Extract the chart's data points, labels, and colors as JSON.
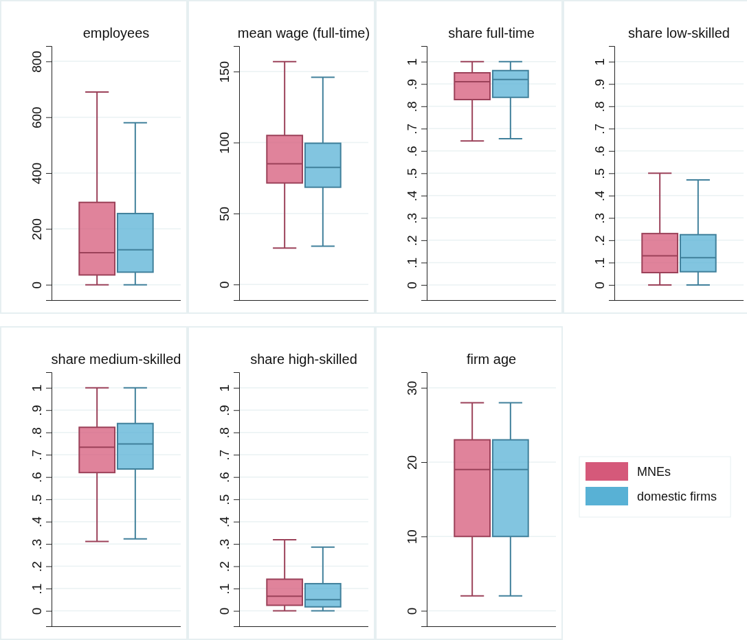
{
  "chart_data": [
    {
      "type": "box",
      "title": "employees",
      "categories": [
        null
      ],
      "ylim": [
        -55,
        855
      ],
      "yticks": [
        0,
        200,
        400,
        600,
        800
      ],
      "grid": "y",
      "series": [
        {
          "color": "#d5597a",
          "boxes": [
            {
              "low": 0,
              "q1": 35,
              "median": 115,
              "q3": 295,
              "high": 690
            }
          ]
        },
        {
          "color": "#58b1d5",
          "boxes": [
            {
              "low": 0,
              "q1": 45,
              "median": 125,
              "q3": 255,
              "high": 580
            }
          ]
        }
      ]
    },
    {
      "type": "box",
      "title": "mean wage (full-time)",
      "categories": [
        null
      ],
      "ylim": [
        -11,
        168
      ],
      "yticks": [
        0,
        50,
        100,
        150
      ],
      "grid": "y",
      "series": [
        {
          "color": "#d5597a",
          "boxes": [
            {
              "low": 25.6,
              "q1": 71.5,
              "median": 85,
              "q3": 105,
              "high": 157
            }
          ]
        },
        {
          "color": "#58b1d5",
          "boxes": [
            {
              "low": 27,
              "q1": 68.5,
              "median": 82.5,
              "q3": 99.5,
              "high": 146
            }
          ]
        }
      ]
    },
    {
      "type": "box",
      "title": "share full-time",
      "categories": [
        null
      ],
      "ylim": [
        -0.068,
        1.07
      ],
      "yticks": [
        0,
        {
          "value": 0.1,
          "label": ".1"
        },
        {
          "value": 0.2,
          "label": ".2"
        },
        {
          "value": 0.3,
          "label": ".3"
        },
        {
          "value": 0.4,
          "label": ".4"
        },
        {
          "value": 0.5,
          "label": ".5"
        },
        {
          "value": 0.6,
          "label": ".6"
        },
        {
          "value": 0.7,
          "label": ".7"
        },
        {
          "value": 0.8,
          "label": ".8"
        },
        {
          "value": 0.9,
          "label": ".9"
        },
        1
      ],
      "grid": "y",
      "series": [
        {
          "color": "#d5597a",
          "boxes": [
            {
              "low": 0.645,
              "q1": 0.83,
              "median": 0.91,
              "q3": 0.95,
              "high": 1
            }
          ]
        },
        {
          "color": "#58b1d5",
          "boxes": [
            {
              "low": 0.655,
              "q1": 0.84,
              "median": 0.92,
              "q3": 0.96,
              "high": 1
            }
          ]
        }
      ]
    },
    {
      "type": "box",
      "title": "share low-skilled",
      "categories": [
        null
      ],
      "ylim": [
        -0.068,
        1.07
      ],
      "yticks": [
        0,
        {
          "value": 0.1,
          "label": ".1"
        },
        {
          "value": 0.2,
          "label": ".2"
        },
        {
          "value": 0.3,
          "label": ".3"
        },
        {
          "value": 0.4,
          "label": ".4"
        },
        {
          "value": 0.5,
          "label": ".5"
        },
        {
          "value": 0.6,
          "label": ".6"
        },
        {
          "value": 0.7,
          "label": ".7"
        },
        {
          "value": 0.8,
          "label": ".8"
        },
        {
          "value": 0.9,
          "label": ".9"
        },
        1
      ],
      "grid": "y",
      "series": [
        {
          "color": "#d5597a",
          "boxes": [
            {
              "low": 0,
              "q1": 0.055,
              "median": 0.13,
              "q3": 0.23,
              "high": 0.5
            }
          ]
        },
        {
          "color": "#58b1d5",
          "boxes": [
            {
              "low": 0,
              "q1": 0.059,
              "median": 0.122,
              "q3": 0.225,
              "high": 0.47
            }
          ]
        }
      ]
    },
    {
      "type": "box",
      "title": "share medium-skilled",
      "categories": [
        null
      ],
      "ylim": [
        -0.069,
        1.07
      ],
      "yticks": [
        0,
        {
          "value": 0.1,
          "label": ".1"
        },
        {
          "value": 0.2,
          "label": ".2"
        },
        {
          "value": 0.3,
          "label": ".3"
        },
        {
          "value": 0.4,
          "label": ".4"
        },
        {
          "value": 0.5,
          "label": ".5"
        },
        {
          "value": 0.6,
          "label": ".6"
        },
        {
          "value": 0.7,
          "label": ".7"
        },
        {
          "value": 0.8,
          "label": ".8"
        },
        {
          "value": 0.9,
          "label": ".9"
        },
        1
      ],
      "grid": "y",
      "series": [
        {
          "color": "#d5597a",
          "boxes": [
            {
              "low": 0.311,
              "q1": 0.62,
              "median": 0.734,
              "q3": 0.823,
              "high": 1
            }
          ]
        },
        {
          "color": "#58b1d5",
          "boxes": [
            {
              "low": 0.323,
              "q1": 0.636,
              "median": 0.748,
              "q3": 0.84,
              "high": 1
            }
          ]
        }
      ]
    },
    {
      "type": "box",
      "title": "share high-skilled",
      "categories": [
        null
      ],
      "ylim": [
        -0.069,
        1.07
      ],
      "yticks": [
        0,
        {
          "value": 0.1,
          "label": ".1"
        },
        {
          "value": 0.2,
          "label": ".2"
        },
        {
          "value": 0.3,
          "label": ".3"
        },
        {
          "value": 0.4,
          "label": ".4"
        },
        {
          "value": 0.5,
          "label": ".5"
        },
        {
          "value": 0.6,
          "label": ".6"
        },
        {
          "value": 0.7,
          "label": ".7"
        },
        {
          "value": 0.8,
          "label": ".8"
        },
        {
          "value": 0.9,
          "label": ".9"
        },
        1
      ],
      "grid": "y",
      "series": [
        {
          "color": "#d5597a",
          "boxes": [
            {
              "low": 0,
              "q1": 0.025,
              "median": 0.066,
              "q3": 0.142,
              "high": 0.319
            }
          ]
        },
        {
          "color": "#58b1d5",
          "boxes": [
            {
              "low": 0,
              "q1": 0.018,
              "median": 0.05,
              "q3": 0.122,
              "high": 0.286
            }
          ]
        }
      ]
    },
    {
      "type": "box",
      "title": "firm age",
      "categories": [
        null
      ],
      "ylim": [
        -2.08,
        32.1
      ],
      "yticks": [
        0,
        10,
        20,
        30
      ],
      "grid": "y",
      "legend": "right",
      "series": [
        {
          "name": "MNEs",
          "color": "#d5597a",
          "boxes": [
            {
              "low": 2,
              "q1": 10,
              "median": 19,
              "q3": 23,
              "high": 28
            }
          ]
        },
        {
          "name": "domestic firms",
          "color": "#58b1d5",
          "boxes": [
            {
              "low": 2,
              "q1": 10,
              "median": 19,
              "q3": 23,
              "high": 28
            }
          ]
        }
      ]
    }
  ]
}
